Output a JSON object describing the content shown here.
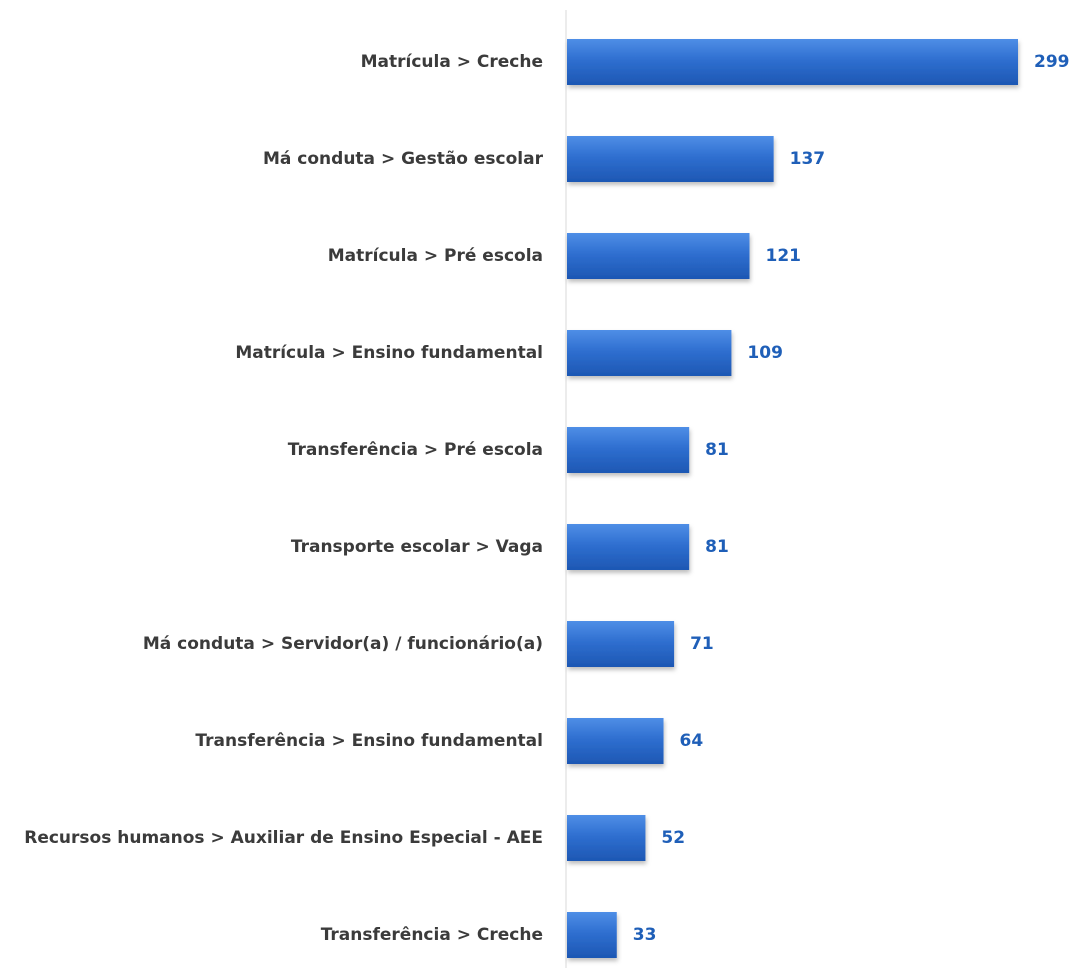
{
  "chart_data": {
    "type": "bar",
    "orientation": "horizontal",
    "categories": [
      "Matrícula > Creche",
      "Má conduta > Gestão escolar",
      "Matrícula > Pré escola",
      "Matrícula > Ensino fundamental",
      "Transferência > Pré escola",
      "Transporte escolar > Vaga",
      "Má conduta > Servidor(a) / funcionário(a)",
      "Transferência > Ensino fundamental",
      "Recursos humanos > Auxiliar de Ensino Especial - AEE",
      "Transferência > Creche"
    ],
    "values": [
      299,
      137,
      121,
      109,
      81,
      81,
      71,
      64,
      52,
      33
    ],
    "data_labels": [
      "299",
      "137",
      "121",
      "109",
      "81",
      "81",
      "71",
      "64",
      "52",
      "33"
    ],
    "title": "",
    "xlabel": "",
    "ylabel": "",
    "xlim": [
      0,
      299
    ],
    "grid": false,
    "legend": "none",
    "colors": {
      "bar": "#2f6fd0",
      "bar_light": "#4f8ee6",
      "bar_dark": "#1d57b3",
      "value_label": "#1f5fb8",
      "category_label": "#3b3b3b",
      "axis_line": "#d9d9d9"
    }
  }
}
